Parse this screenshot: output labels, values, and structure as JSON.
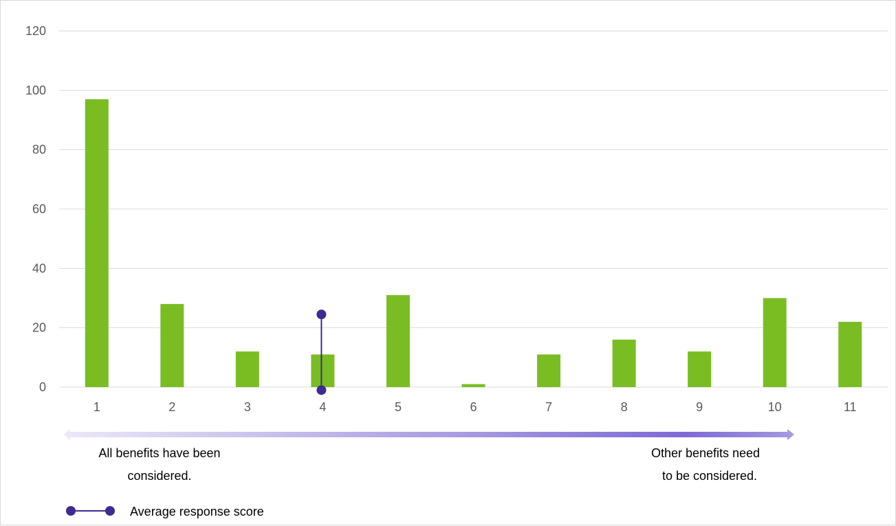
{
  "chart_data": {
    "type": "bar",
    "title": "",
    "xlabel": "",
    "ylabel": "",
    "categories": [
      "1",
      "2",
      "3",
      "4",
      "5",
      "6",
      "7",
      "8",
      "9",
      "10",
      "11"
    ],
    "values": [
      97,
      28,
      12,
      11,
      31,
      1,
      11,
      16,
      12,
      30,
      22
    ],
    "ylim": [
      0,
      120
    ],
    "yticks": [
      "0",
      "20",
      "40",
      "60",
      "80",
      "100",
      "120"
    ],
    "grid": true,
    "average_marker": {
      "category": "4",
      "value_high": 24.5,
      "value_low": -1
    },
    "legend": {
      "label": "Average response score",
      "placement": "bottom-left"
    },
    "scale_arrow": {
      "left_label": [
        "All benefits have been",
        "considered."
      ],
      "right_label": [
        "Other benefits need",
        "to be considered."
      ]
    }
  },
  "colors": {
    "bar": "#7abd23",
    "average": "#3e2b91",
    "grid": "#d9d9d9",
    "arrow_start": "#ece8f8",
    "arrow_mid": "#a79ae0",
    "arrow_end": "#7e69d6"
  }
}
